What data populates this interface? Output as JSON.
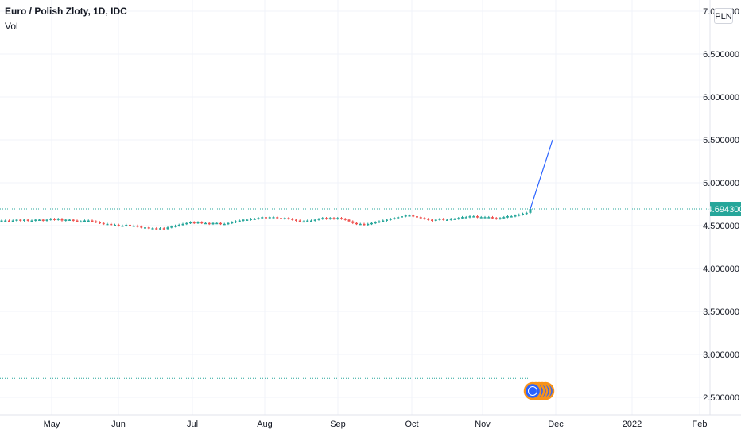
{
  "legend": {
    "title": "Euro / Polish Zloty, 1D, IDC",
    "indicator": "Vol"
  },
  "currency_badge": "PLN",
  "price_label": "4.694300",
  "colors": {
    "up": "#26a69a",
    "down": "#ef5350",
    "projection_line": "#2962ff",
    "grid": "#f0f3fa",
    "price_line": "#26a69a",
    "event_marker": "#2962ff",
    "event_marker_ring": "#f7931a"
  },
  "icons": {
    "event_marker": "dividends-events-icon"
  },
  "chart_data": {
    "type": "candlestick",
    "title": "Euro / Polish Zloty, 1D, IDC",
    "xlabel": "",
    "ylabel": "",
    "y_ticks": [
      "2.500000",
      "3.000000",
      "3.500000",
      "4.000000",
      "4.500000",
      "5.000000",
      "5.500000",
      "6.000000",
      "6.500000",
      "7.000000"
    ],
    "x_ticks": [
      "May",
      "Jun",
      "Jul",
      "Aug",
      "Sep",
      "Oct",
      "Nov",
      "Dec",
      "2022",
      "Feb"
    ],
    "ylim": [
      2.1,
      7.05
    ],
    "last_price": 4.6943,
    "reference_level": 2.72,
    "projection": {
      "from": 4.6943,
      "to": 5.5
    },
    "grid": true,
    "series": [
      {
        "name": "EURPLN",
        "close": [
          4.56,
          4.56,
          4.55,
          4.56,
          4.57,
          4.56,
          4.57,
          4.56,
          4.56,
          4.57,
          4.57,
          4.56,
          4.57,
          4.58,
          4.57,
          4.58,
          4.56,
          4.57,
          4.57,
          4.56,
          4.55,
          4.55,
          4.56,
          4.56,
          4.55,
          4.54,
          4.53,
          4.52,
          4.52,
          4.51,
          4.51,
          4.5,
          4.5,
          4.51,
          4.5,
          4.5,
          4.49,
          4.48,
          4.48,
          4.47,
          4.47,
          4.46,
          4.47,
          4.46,
          4.48,
          4.49,
          4.5,
          4.51,
          4.52,
          4.53,
          4.54,
          4.53,
          4.54,
          4.53,
          4.53,
          4.52,
          4.53,
          4.53,
          4.52,
          4.52,
          4.53,
          4.54,
          4.55,
          4.56,
          4.57,
          4.57,
          4.58,
          4.58,
          4.59,
          4.6,
          4.59,
          4.6,
          4.6,
          4.59,
          4.58,
          4.59,
          4.58,
          4.57,
          4.56,
          4.55,
          4.55,
          4.56,
          4.56,
          4.57,
          4.58,
          4.59,
          4.58,
          4.59,
          4.58,
          4.59,
          4.58,
          4.57,
          4.55,
          4.53,
          4.52,
          4.52,
          4.51,
          4.52,
          4.53,
          4.54,
          4.55,
          4.56,
          4.57,
          4.58,
          4.59,
          4.6,
          4.61,
          4.62,
          4.62,
          4.61,
          4.6,
          4.59,
          4.58,
          4.57,
          4.56,
          4.57,
          4.58,
          4.57,
          4.57,
          4.58,
          4.58,
          4.59,
          4.6,
          4.6,
          4.61,
          4.61,
          4.6,
          4.6,
          4.6,
          4.6,
          4.59,
          4.58,
          4.59,
          4.6,
          4.61,
          4.61,
          4.62,
          4.63,
          4.64,
          4.65,
          4.6943
        ]
      }
    ]
  }
}
